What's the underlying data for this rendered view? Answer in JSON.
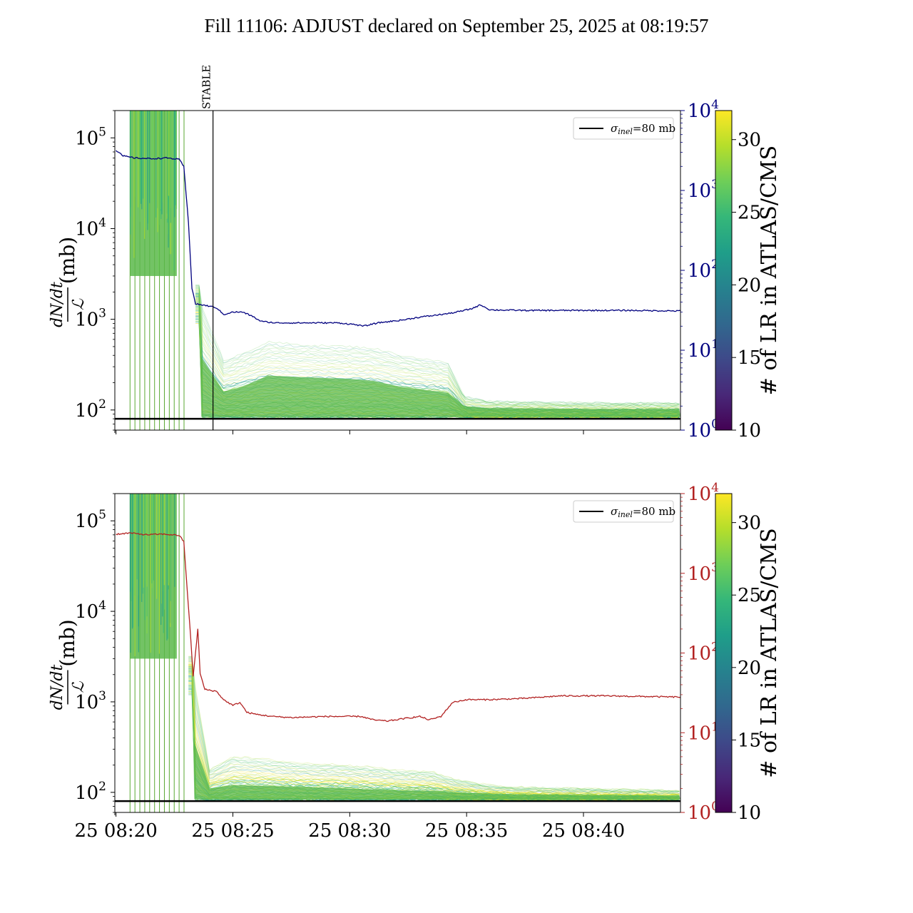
{
  "title": "Fill 11106: ADJUST declared on September 25, 2025 at 08:19:57",
  "colors": {
    "top_right_axis": "#00007f",
    "bottom_right_axis": "#b22222",
    "sigma_line": "#000000",
    "viridis": [
      "#440154",
      "#482878",
      "#3e4989",
      "#31688e",
      "#26828e",
      "#1f9e89",
      "#35b779",
      "#6ece58",
      "#b5de2b",
      "#fde725"
    ]
  },
  "chart_data": [
    {
      "type": "line",
      "panel": "top",
      "ylabel_num": "dN/dt",
      "ylabel_den": "ℒ",
      "ylabel_unit": "(mb)",
      "yscale": "log",
      "ylim": [
        60,
        200000
      ],
      "yticks": [
        {
          "v": 100,
          "b": "10",
          "e": "2"
        },
        {
          "v": 1000,
          "b": "10",
          "e": "3"
        },
        {
          "v": 10000,
          "b": "10",
          "e": "4"
        },
        {
          "v": 100000,
          "b": "10",
          "e": "5"
        }
      ],
      "xlim_min": [
        -0.05,
        24.15
      ],
      "xticks": [
        {
          "v": 0,
          "t": "25 08:20"
        },
        {
          "v": 5,
          "t": "25 08:25"
        },
        {
          "v": 10,
          "t": "25 08:30"
        },
        {
          "v": 15,
          "t": "25 08:35"
        },
        {
          "v": 20,
          "t": "25 08:40"
        }
      ],
      "show_xticklabels": false,
      "legend": {
        "label_sym": "σ",
        "label_sub": "inel",
        "label_rest": "=80 mb",
        "position": "upper right"
      },
      "hline": 80,
      "vline": {
        "x": 4.15,
        "label": "STABLE"
      },
      "right_axis": {
        "yscale": "log",
        "ylim": [
          1,
          10000
        ],
        "ticks": [
          {
            "v": 1,
            "b": "10",
            "e": "0"
          },
          {
            "v": 10,
            "b": "10",
            "e": "1"
          },
          {
            "v": 100,
            "b": "10",
            "e": "2"
          },
          {
            "v": 1000,
            "b": "10",
            "e": "3"
          },
          {
            "v": 10000,
            "b": "10",
            "e": "4"
          }
        ]
      },
      "right_series_points": [
        [
          0,
          3200
        ],
        [
          0.3,
          2700
        ],
        [
          0.8,
          2550
        ],
        [
          1.5,
          2500
        ],
        [
          2.2,
          2550
        ],
        [
          2.7,
          2450
        ],
        [
          2.9,
          2000
        ],
        [
          3.1,
          400
        ],
        [
          3.25,
          60
        ],
        [
          3.4,
          38
        ],
        [
          3.9,
          36
        ],
        [
          4.3,
          34
        ],
        [
          4.6,
          28
        ],
        [
          5.0,
          30
        ],
        [
          5.4,
          30
        ],
        [
          5.8,
          27
        ],
        [
          6.2,
          23
        ],
        [
          6.8,
          22
        ],
        [
          7.5,
          22
        ],
        [
          8.5,
          22
        ],
        [
          9.5,
          22
        ],
        [
          10.2,
          21
        ],
        [
          10.6,
          20
        ],
        [
          11.2,
          22
        ],
        [
          12.3,
          24
        ],
        [
          13.0,
          26
        ],
        [
          13.5,
          27
        ],
        [
          14.3,
          29
        ],
        [
          14.8,
          31
        ],
        [
          15.2,
          33
        ],
        [
          15.6,
          37
        ],
        [
          16.0,
          32
        ],
        [
          17.5,
          31.5
        ],
        [
          20,
          31.5
        ],
        [
          22,
          31.5
        ],
        [
          24.1,
          31
        ]
      ],
      "band_points": [
        [
          3.6,
          1500
        ],
        [
          4.6,
          350
        ],
        [
          5.4,
          420
        ],
        [
          6.5,
          560
        ],
        [
          8,
          520
        ],
        [
          10,
          500
        ],
        [
          11,
          480
        ],
        [
          12.2,
          400
        ],
        [
          14.2,
          330
        ],
        [
          14.9,
          140
        ],
        [
          16,
          125
        ],
        [
          20,
          120
        ],
        [
          24.1,
          120
        ]
      ],
      "core_points": [
        [
          3.6,
          400
        ],
        [
          4.6,
          160
        ],
        [
          5.4,
          180
        ],
        [
          6.5,
          240
        ],
        [
          8,
          230
        ],
        [
          10,
          220
        ],
        [
          11,
          210
        ],
        [
          12.2,
          180
        ],
        [
          14.2,
          155
        ],
        [
          14.9,
          110
        ],
        [
          16,
          105
        ],
        [
          20,
          103
        ],
        [
          24.1,
          103
        ]
      ],
      "spike_count": 12,
      "colorbar": {
        "label": "# of LR in ATLAS/CMS",
        "min": 10,
        "max": 32,
        "ticks": [
          10,
          15,
          20,
          25,
          30
        ]
      }
    },
    {
      "type": "line",
      "panel": "bottom",
      "ylabel_num": "dN/dt",
      "ylabel_den": "ℒ",
      "ylabel_unit": "(mb)",
      "yscale": "log",
      "ylim": [
        60,
        200000
      ],
      "yticks": [
        {
          "v": 100,
          "b": "10",
          "e": "2"
        },
        {
          "v": 1000,
          "b": "10",
          "e": "3"
        },
        {
          "v": 10000,
          "b": "10",
          "e": "4"
        },
        {
          "v": 100000,
          "b": "10",
          "e": "5"
        }
      ],
      "xlim_min": [
        -0.05,
        24.15
      ],
      "xticks": [
        {
          "v": 0,
          "t": "25 08:20"
        },
        {
          "v": 5,
          "t": "25 08:25"
        },
        {
          "v": 10,
          "t": "25 08:30"
        },
        {
          "v": 15,
          "t": "25 08:35"
        },
        {
          "v": 20,
          "t": "25 08:40"
        }
      ],
      "show_xticklabels": true,
      "legend": {
        "label_sym": "σ",
        "label_sub": "inel",
        "label_rest": "=80 mb",
        "position": "upper right"
      },
      "hline": 80,
      "right_axis": {
        "yscale": "log",
        "ylim": [
          1,
          10000
        ],
        "ticks": [
          {
            "v": 1,
            "b": "10",
            "e": "0"
          },
          {
            "v": 10,
            "b": "10",
            "e": "1"
          },
          {
            "v": 100,
            "b": "10",
            "e": "2"
          },
          {
            "v": 1000,
            "b": "10",
            "e": "3"
          },
          {
            "v": 10000,
            "b": "10",
            "e": "4"
          }
        ]
      },
      "right_series_points": [
        [
          0,
          3100
        ],
        [
          0.6,
          3200
        ],
        [
          1.3,
          3050
        ],
        [
          2.0,
          3100
        ],
        [
          2.7,
          3000
        ],
        [
          2.9,
          2500
        ],
        [
          3.05,
          600
        ],
        [
          3.2,
          150
        ],
        [
          3.3,
          50
        ],
        [
          3.5,
          200
        ],
        [
          3.6,
          55
        ],
        [
          3.8,
          35
        ],
        [
          4.3,
          33
        ],
        [
          4.6,
          26
        ],
        [
          5.0,
          22
        ],
        [
          5.3,
          24
        ],
        [
          5.6,
          18
        ],
        [
          6.0,
          17
        ],
        [
          6.7,
          16
        ],
        [
          7.5,
          15.5
        ],
        [
          9.0,
          16
        ],
        [
          10.5,
          16
        ],
        [
          11.0,
          14.5
        ],
        [
          11.6,
          14
        ],
        [
          12.3,
          15
        ],
        [
          13.0,
          16
        ],
        [
          13.4,
          14.5
        ],
        [
          13.9,
          16
        ],
        [
          14.4,
          24
        ],
        [
          15.0,
          26
        ],
        [
          16,
          26
        ],
        [
          17.5,
          27
        ],
        [
          19,
          29
        ],
        [
          21,
          29
        ],
        [
          22.5,
          28.5
        ],
        [
          24.1,
          28
        ]
      ],
      "band_points": [
        [
          3.3,
          2000
        ],
        [
          4.0,
          180
        ],
        [
          5.0,
          250
        ],
        [
          6.5,
          230
        ],
        [
          8,
          210
        ],
        [
          10,
          200
        ],
        [
          11,
          190
        ],
        [
          12,
          175
        ],
        [
          13.5,
          170
        ],
        [
          14.5,
          140
        ],
        [
          16,
          120
        ],
        [
          17,
          115
        ],
        [
          20,
          110
        ],
        [
          24.1,
          105
        ]
      ],
      "core_points": [
        [
          3.3,
          400
        ],
        [
          4.0,
          110
        ],
        [
          5.0,
          120
        ],
        [
          6.5,
          118
        ],
        [
          8,
          115
        ],
        [
          10,
          110
        ],
        [
          11,
          108
        ],
        [
          12,
          105
        ],
        [
          13.5,
          104
        ],
        [
          14.5,
          100
        ],
        [
          16,
          97
        ],
        [
          17,
          95
        ],
        [
          20,
          94
        ],
        [
          24.1,
          92
        ]
      ],
      "spike_count": 12,
      "colorbar": {
        "label": "# of LR in ATLAS/CMS",
        "min": 10,
        "max": 32,
        "ticks": [
          10,
          15,
          20,
          25,
          30
        ]
      }
    }
  ]
}
